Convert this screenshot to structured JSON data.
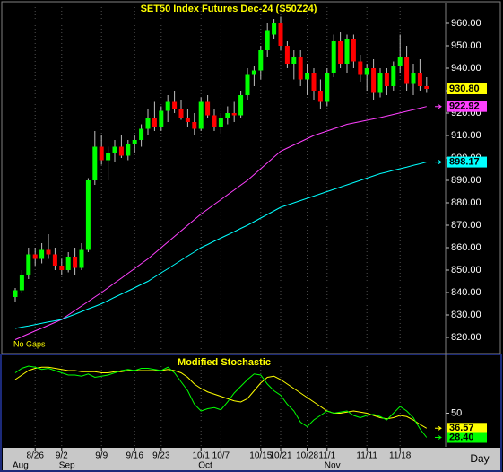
{
  "chart_data": [
    {
      "type": "candlestick",
      "title": "SET50 Index Futures Dec-24 (S50Z24)",
      "note": "No Gaps",
      "period": "Day",
      "categories": [
        null,
        null,
        null,
        "8/26",
        null,
        null,
        null,
        "9/2",
        null,
        null,
        null,
        null,
        null,
        "9/9",
        null,
        null,
        null,
        null,
        "9/16",
        null,
        null,
        null,
        "9/23",
        null,
        null,
        null,
        null,
        null,
        "10/1",
        null,
        null,
        "10/7",
        null,
        null,
        null,
        null,
        null,
        "10/15",
        null,
        null,
        "10/21",
        null,
        null,
        null,
        "10/28",
        null,
        null,
        "11/1",
        null,
        null,
        null,
        null,
        null,
        "11/11",
        null,
        null,
        null,
        null,
        "11/18",
        null,
        null,
        null,
        null
      ],
      "months": [
        "Aug",
        null,
        null,
        null,
        null,
        null,
        null,
        "Sep",
        null,
        null,
        null,
        null,
        null,
        null,
        null,
        null,
        null,
        null,
        null,
        null,
        null,
        null,
        null,
        null,
        null,
        null,
        null,
        null,
        "Oct",
        null,
        null,
        null,
        null,
        null,
        null,
        null,
        null,
        null,
        null,
        null,
        null,
        null,
        null,
        null,
        null,
        null,
        null,
        "Nov",
        null,
        null,
        null,
        null,
        null,
        null,
        null,
        null,
        null,
        null,
        null,
        null,
        null,
        null,
        null
      ],
      "open": [
        838,
        841,
        848,
        857,
        855,
        859,
        857,
        852,
        850,
        856,
        851,
        859,
        890,
        905,
        899,
        902,
        905,
        901,
        906,
        908,
        913,
        918,
        914,
        921,
        925,
        922,
        918,
        916,
        913,
        925,
        919,
        914,
        918,
        920,
        919,
        928,
        937,
        939,
        948,
        955,
        960,
        950,
        942,
        945,
        935,
        938,
        930,
        925,
        938,
        952,
        942,
        953,
        943,
        937,
        940,
        929,
        938,
        932,
        941,
        945,
        933,
        938,
        932
      ],
      "high": [
        842,
        850,
        860,
        860,
        862,
        866,
        860,
        855,
        858,
        860,
        862,
        891,
        912,
        910,
        905,
        908,
        910,
        908,
        910,
        915,
        922,
        925,
        923,
        928,
        930,
        926,
        922,
        920,
        927,
        928,
        922,
        920,
        923,
        925,
        930,
        940,
        941,
        950,
        960,
        962,
        963,
        952,
        948,
        948,
        942,
        940,
        935,
        940,
        955,
        956,
        955,
        955,
        946,
        942,
        944,
        940,
        940,
        943,
        955,
        950,
        942,
        944,
        936
      ],
      "low": [
        836,
        840,
        846,
        852,
        853,
        855,
        850,
        848,
        849,
        848,
        850,
        858,
        888,
        897,
        890,
        898,
        900,
        899,
        902,
        905,
        910,
        912,
        912,
        916,
        920,
        917,
        914,
        910,
        912,
        918,
        912,
        911,
        915,
        916,
        918,
        926,
        932,
        935,
        945,
        953,
        948,
        940,
        935,
        932,
        928,
        926,
        922,
        923,
        936,
        940,
        938,
        940,
        934,
        930,
        926,
        927,
        928,
        930,
        938,
        930,
        928,
        930,
        929
      ],
      "close": [
        841,
        848,
        857,
        855,
        859,
        857,
        852,
        850,
        856,
        851,
        859,
        890,
        905,
        899,
        902,
        905,
        901,
        906,
        908,
        913,
        918,
        914,
        921,
        925,
        922,
        918,
        916,
        913,
        925,
        919,
        914,
        918,
        920,
        919,
        928,
        937,
        939,
        948,
        957,
        960,
        950,
        942,
        945,
        935,
        938,
        930,
        925,
        938,
        952,
        942,
        953,
        943,
        937,
        940,
        929,
        938,
        932,
        941,
        945,
        933,
        938,
        932,
        930.8
      ],
      "last_label": "930.80",
      "up_color": "#00ff00",
      "down_color": "#ff0000",
      "series": [
        {
          "color": "#ff40ff",
          "last_label": "922.92",
          "values": [
            819,
            820.3,
            821.6,
            822.9,
            824.1,
            825.4,
            826.7,
            828,
            830,
            832,
            834,
            836,
            838,
            840,
            842.1,
            844.3,
            846.4,
            848.6,
            850.7,
            852.9,
            855,
            857.5,
            860,
            862.5,
            865,
            867.5,
            870,
            872.5,
            875,
            877.1,
            879.3,
            881.4,
            883.6,
            885.7,
            887.9,
            890,
            892.6,
            895.2,
            897.8,
            900.4,
            903,
            904.4,
            905.8,
            907.2,
            908.6,
            910,
            911,
            912,
            913,
            914,
            915,
            915.6,
            916.2,
            916.8,
            917.4,
            918,
            918.7,
            919.4,
            920.1,
            920.8,
            921.5,
            922.2,
            922.92
          ]
        },
        {
          "color": "#00ffff",
          "last_label": "898.17",
          "values": [
            824,
            824.6,
            825.1,
            825.7,
            826.3,
            826.9,
            827.4,
            828,
            829.2,
            830.3,
            831.5,
            832.7,
            833.8,
            835,
            836.4,
            837.9,
            839.3,
            840.7,
            842.1,
            843.6,
            845,
            846.9,
            848.8,
            850.6,
            852.5,
            854.4,
            856.3,
            858.1,
            860,
            861.4,
            862.9,
            864.3,
            865.7,
            867.1,
            868.6,
            870,
            871.6,
            873.2,
            874.8,
            876.4,
            878,
            879,
            880,
            881,
            882,
            883,
            884,
            885,
            886,
            887,
            888,
            889,
            890,
            891,
            892,
            893,
            893.7,
            894.5,
            895.2,
            895.9,
            896.7,
            897.4,
            898.17
          ]
        }
      ],
      "ylim": [
        813.6,
        967.2
      ],
      "yticks": [
        {
          "value": 820,
          "label": "820.00"
        },
        {
          "value": 830,
          "label": "830.00"
        },
        {
          "value": 840,
          "label": "840.00"
        },
        {
          "value": 850,
          "label": "850.00"
        },
        {
          "value": 860,
          "label": "860.00"
        },
        {
          "value": 870,
          "label": "870.00"
        },
        {
          "value": 880,
          "label": "880.00"
        },
        {
          "value": 890,
          "label": "890.00"
        },
        {
          "value": 900,
          "label": "900.00"
        },
        {
          "value": 910,
          "label": "910.00"
        },
        {
          "value": 920,
          "label": "920.00"
        },
        {
          "value": 930,
          "label": "930.00"
        },
        {
          "value": 940,
          "label": "940.00"
        },
        {
          "value": 950,
          "label": "950.00"
        },
        {
          "value": 960,
          "label": "960.00"
        }
      ]
    },
    {
      "type": "line",
      "title": "Modified Stochastic",
      "series": [
        {
          "color": "#ffff00",
          "last_label": "36.57",
          "values": [
            80,
            84,
            88,
            90,
            91,
            91,
            90,
            89,
            88,
            88,
            87,
            87,
            87,
            86,
            86,
            87,
            87,
            88,
            88,
            88,
            88,
            88,
            88,
            89,
            88,
            86,
            82,
            76,
            72,
            69,
            67,
            65,
            63,
            61,
            60,
            63,
            70,
            77,
            82,
            83,
            80,
            76,
            72,
            68,
            64,
            60,
            56,
            52,
            50,
            50,
            51,
            52,
            51,
            50,
            48,
            46,
            45,
            46,
            48,
            47,
            44,
            40,
            36.57
          ]
        },
        {
          "color": "#00ff00",
          "last_label": "28.40",
          "values": [
            86,
            90,
            92,
            91,
            89,
            90,
            88,
            86,
            84,
            84,
            83,
            85,
            82,
            83,
            84,
            86,
            88,
            89,
            88,
            90,
            90,
            89,
            88,
            91,
            86,
            78,
            70,
            58,
            52,
            54,
            55,
            53,
            60,
            68,
            74,
            80,
            85,
            84,
            76,
            70,
            66,
            58,
            52,
            42,
            38,
            44,
            48,
            52,
            50,
            51,
            52,
            48,
            46,
            48,
            49,
            47,
            44,
            50,
            56,
            52,
            46,
            36,
            28.4
          ]
        }
      ],
      "ylim": [
        20,
        100
      ],
      "yticks": [
        50
      ]
    }
  ]
}
